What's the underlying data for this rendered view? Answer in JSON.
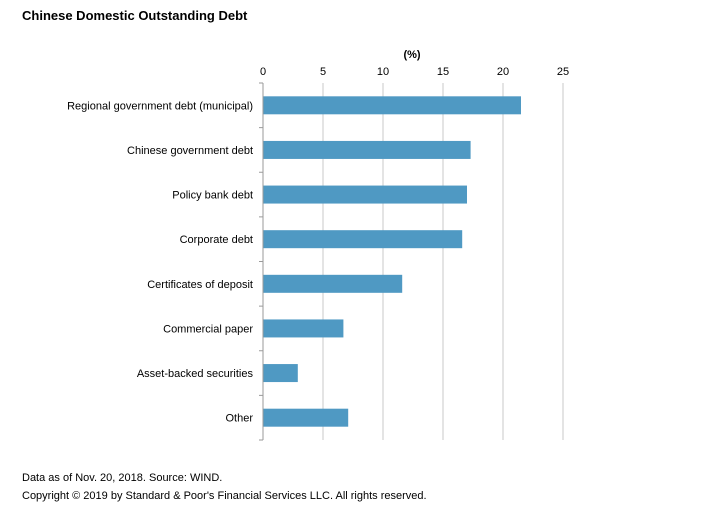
{
  "title": "Chinese Domestic Outstanding Debt",
  "footer": {
    "note": "Data as of Nov. 20, 2018. Source: WIND.",
    "copyright": "Copyright © 2019 by Standard & Poor's Financial Services LLC. All rights reserved."
  },
  "chart_data": {
    "type": "bar",
    "orientation": "horizontal",
    "title": "Chinese Domestic Outstanding Debt",
    "xlabel": "(%)",
    "ylabel": "",
    "xlim": [
      0,
      25
    ],
    "xticks": [
      0,
      5,
      10,
      15,
      20,
      25
    ],
    "grid": "vertical",
    "bar_color": "#4f99c3",
    "categories": [
      "Regional government debt (municipal)",
      "Chinese government debt",
      "Policy bank debt",
      "Corporate debt",
      "Certificates of deposit",
      "Commercial paper",
      "Asset-backed securities",
      "Other"
    ],
    "values": [
      21.5,
      17.3,
      17.0,
      16.6,
      11.6,
      6.7,
      2.9,
      7.1
    ]
  }
}
